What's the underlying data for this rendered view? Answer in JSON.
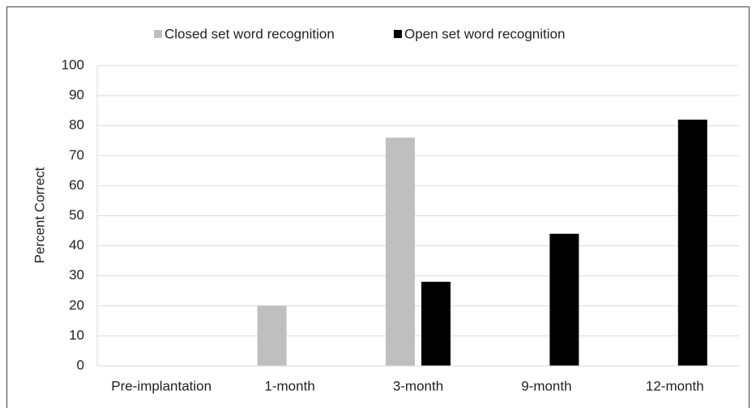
{
  "chart_data": {
    "type": "bar",
    "ylabel": "Percent Correct",
    "categories": [
      "Pre-implantation",
      "1-month",
      "3-month",
      "9-month",
      "12-month"
    ],
    "series": [
      {
        "name": "Closed set word recognition",
        "color": "#bfbfbf",
        "values": [
          0,
          20,
          76,
          0,
          0
        ]
      },
      {
        "name": "Open set word recognition",
        "color": "#000000",
        "values": [
          0,
          0,
          28,
          44,
          82
        ]
      }
    ],
    "ylim": [
      0,
      100
    ],
    "yticks": [
      0,
      10,
      20,
      30,
      40,
      50,
      60,
      70,
      80,
      90,
      100
    ],
    "grid": true,
    "legend": "top"
  }
}
